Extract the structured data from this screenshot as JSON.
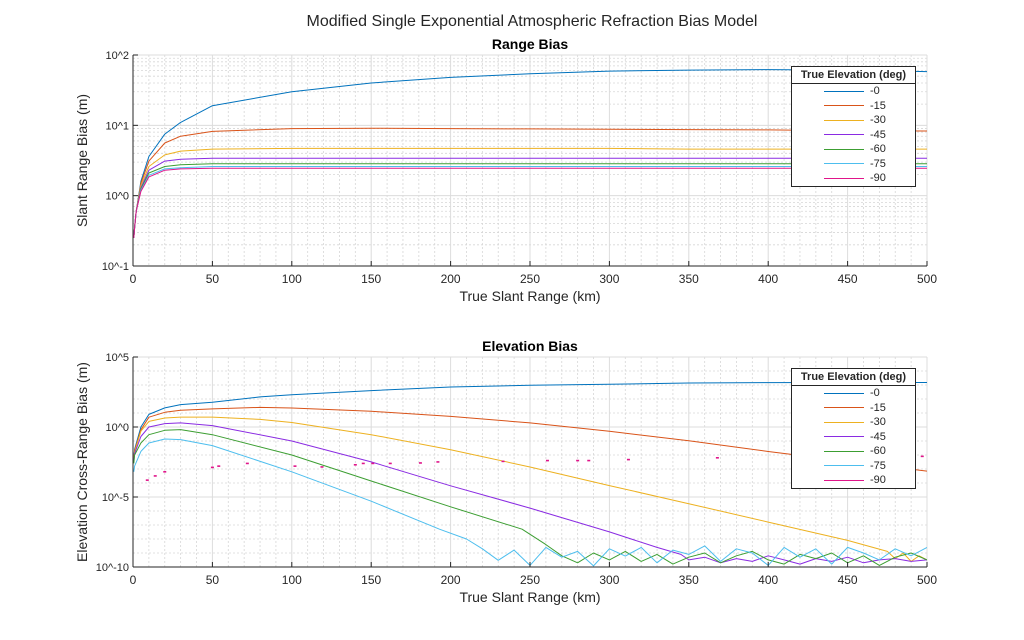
{
  "figure_title": "Modified Single Exponential Atmospheric Refraction Bias Model",
  "chart_data": [
    {
      "type": "line",
      "title": "Range Bias",
      "xlabel": "True Slant Range (km)",
      "ylabel": "Slant Range Bias (m)",
      "xlim": [
        0,
        500
      ],
      "ylim": [
        0.1,
        100
      ],
      "yscale": "log",
      "grid": true,
      "minor_grid": true,
      "xticks": [
        0,
        50,
        100,
        150,
        200,
        250,
        300,
        350,
        400,
        450,
        500
      ],
      "xtick_labels": [
        "0",
        "50",
        "100",
        "150",
        "200",
        "250",
        "300",
        "350",
        "400",
        "450",
        "500"
      ],
      "yticks": [
        0.1,
        1,
        10,
        100
      ],
      "ytick_labels": [
        "10^-1",
        "10^0",
        "10^1",
        "10^2"
      ],
      "legend_title": "True Elevation (deg)",
      "legend_position": "top-right",
      "x": [
        0.5,
        1,
        2,
        5,
        10,
        20,
        30,
        50,
        100,
        150,
        200,
        250,
        300,
        350,
        400,
        450,
        500
      ],
      "series": [
        {
          "name": "-0",
          "color": "#0072BD",
          "y": [
            0.25,
            0.35,
            0.6,
            1.6,
            3.6,
            7.5,
            11,
            19,
            30,
            40,
            48,
            54,
            59,
            61,
            62,
            61,
            58
          ]
        },
        {
          "name": "-15",
          "color": "#D95319",
          "y": [
            0.25,
            0.35,
            0.6,
            1.5,
            3.1,
            5.6,
            7,
            8.2,
            9,
            9.1,
            9,
            8.9,
            8.8,
            8.7,
            8.6,
            8.4,
            8.3
          ]
        },
        {
          "name": "-30",
          "color": "#EDB120",
          "y": [
            0.25,
            0.35,
            0.6,
            1.4,
            2.6,
            3.8,
            4.3,
            4.6,
            4.7,
            4.7,
            4.7,
            4.7,
            4.7,
            4.6,
            4.6,
            4.6,
            4.6
          ]
        },
        {
          "name": "-45",
          "color": "#8A2BE2",
          "y": [
            0.25,
            0.35,
            0.6,
            1.3,
            2.3,
            3.1,
            3.3,
            3.4,
            3.4,
            3.4,
            3.4,
            3.4,
            3.4,
            3.4,
            3.4,
            3.4,
            3.4
          ]
        },
        {
          "name": "-60",
          "color": "#3C9E32",
          "y": [
            0.25,
            0.35,
            0.6,
            1.25,
            2.1,
            2.6,
            2.75,
            2.85,
            2.85,
            2.85,
            2.85,
            2.85,
            2.85,
            2.85,
            2.85,
            2.85,
            2.85
          ]
        },
        {
          "name": "-75",
          "color": "#4DBEEE",
          "y": [
            0.25,
            0.35,
            0.6,
            1.2,
            1.95,
            2.4,
            2.5,
            2.6,
            2.6,
            2.6,
            2.6,
            2.6,
            2.6,
            2.6,
            2.6,
            2.6,
            2.6
          ]
        },
        {
          "name": "-90",
          "color": "#E0158A",
          "y": [
            0.25,
            0.35,
            0.6,
            1.15,
            1.85,
            2.3,
            2.4,
            2.45,
            2.45,
            2.45,
            2.45,
            2.45,
            2.45,
            2.45,
            2.45,
            2.45,
            2.45
          ]
        }
      ]
    },
    {
      "type": "line",
      "title": "Elevation Bias",
      "xlabel": "True Slant Range (km)",
      "ylabel": "Elevation Cross-Range Bias (m)",
      "xlim": [
        0,
        500
      ],
      "ylim": [
        1e-10,
        100000
      ],
      "yscale": "log",
      "grid": true,
      "minor_grid": true,
      "xticks": [
        0,
        50,
        100,
        150,
        200,
        250,
        300,
        350,
        400,
        450,
        500
      ],
      "xtick_labels": [
        "0",
        "50",
        "100",
        "150",
        "200",
        "250",
        "300",
        "350",
        "400",
        "450",
        "500"
      ],
      "yticks": [
        1e-10,
        1e-05,
        1,
        100000
      ],
      "ytick_labels": [
        "10^-10",
        "10^-5",
        "10^0",
        "10^5"
      ],
      "legend_title": "True Elevation (deg)",
      "legend_position": "top-right",
      "series": [
        {
          "name": "-0",
          "color": "#0072BD",
          "x": [
            0.5,
            1,
            5,
            10,
            20,
            30,
            50,
            80,
            100,
            150,
            200,
            250,
            300,
            350,
            400,
            450,
            500
          ],
          "y": [
            0.005,
            0.025,
            1,
            7.9,
            23,
            40,
            58,
            141,
            200,
            398,
            724,
            955,
            1122,
            1380,
            1479,
            1514,
            1514
          ]
        },
        {
          "name": "-15",
          "color": "#D95319",
          "x": [
            0.5,
            1,
            5,
            10,
            20,
            30,
            50,
            80,
            100,
            150,
            200,
            250,
            300,
            350,
            400,
            450,
            500
          ],
          "y": [
            0.005,
            0.02,
            0.63,
            5.0,
            11.2,
            15.8,
            19.5,
            25.1,
            22.9,
            13.2,
            5.75,
            1.95,
            0.49,
            0.105,
            0.0178,
            0.0035,
            0.00071
          ]
        },
        {
          "name": "-30",
          "color": "#EDB120",
          "x": [
            0.5,
            1,
            5,
            10,
            20,
            30,
            50,
            80,
            100,
            150,
            200,
            250,
            300,
            350,
            400,
            450,
            475,
            480,
            485,
            490,
            495,
            500
          ],
          "y": [
            0.004,
            0.016,
            0.5,
            2.5,
            4.4,
            5.1,
            5.1,
            3.5,
            2.1,
            0.28,
            0.024,
            0.0014,
            6.5e-05,
            3.3e-06,
            1.6e-07,
            7.9e-09,
            1.3e-09,
            4e-10,
            1e-09,
            2.5e-10,
            6.3e-10,
            3.2e-10
          ]
        },
        {
          "name": "-45",
          "color": "#8A2BE2",
          "x": [
            0.5,
            1,
            5,
            10,
            20,
            30,
            50,
            100,
            150,
            200,
            250,
            300,
            330,
            345,
            350,
            360,
            370,
            380,
            390,
            400,
            410,
            420,
            430,
            440,
            450,
            460,
            470,
            480,
            490,
            500
          ],
          "y": [
            0.0032,
            0.0126,
            0.21,
            1,
            1.74,
            1.95,
            1.26,
            0.1,
            0.0032,
            6.3e-05,
            1.6e-06,
            3.2e-08,
            2.5e-09,
            7.9e-10,
            3.2e-10,
            5e-10,
            2e-10,
            4e-10,
            2.5e-10,
            6.3e-10,
            3.2e-10,
            1.6e-10,
            4e-10,
            2.5e-10,
            5e-10,
            2e-10,
            3.2e-10,
            4e-10,
            2.5e-10,
            3.2e-10
          ]
        },
        {
          "name": "-60",
          "color": "#3C9E32",
          "x": [
            0.5,
            1,
            5,
            10,
            20,
            30,
            50,
            100,
            150,
            200,
            245,
            260,
            270,
            280,
            290,
            300,
            310,
            320,
            330,
            340,
            350,
            360,
            370,
            380,
            390,
            400,
            410,
            420,
            430,
            440,
            450,
            460,
            470,
            480,
            490,
            500
          ],
          "y": [
            0.0025,
            0.01,
            0.072,
            0.28,
            0.58,
            0.65,
            0.28,
            0.01,
            0.00014,
            2e-06,
            5e-08,
            4e-09,
            6.3e-10,
            2e-10,
            1e-09,
            3.2e-10,
            1.3e-09,
            2.5e-10,
            8e-10,
            1.6e-10,
            5e-10,
            1e-09,
            2e-10,
            6.3e-10,
            1.3e-09,
            3.2e-10,
            1.6e-10,
            8e-10,
            4e-10,
            1e-09,
            2e-10,
            6.3e-10,
            1.3e-10,
            5e-10,
            1e-09,
            3.2e-10
          ]
        },
        {
          "name": "-75",
          "color": "#4DBEEE",
          "x": [
            0.5,
            1,
            5,
            10,
            20,
            30,
            50,
            100,
            150,
            193,
            210,
            220,
            230,
            240,
            250,
            260,
            270,
            280,
            290,
            300,
            310,
            320,
            330,
            340,
            350,
            360,
            370,
            380,
            390,
            400,
            410,
            420,
            430,
            440,
            450,
            460,
            470,
            480,
            490,
            500
          ],
          "y": [
            0.00063,
            0.0016,
            0.018,
            0.072,
            0.14,
            0.126,
            0.047,
            0.00063,
            5e-06,
            5e-08,
            1e-08,
            2e-09,
            3e-10,
            1.6e-09,
            1.3e-10,
            2.5e-09,
            5e-10,
            1.3e-09,
            1.2e-10,
            2e-09,
            6e-10,
            2.5e-09,
            2e-10,
            1.6e-09,
            8e-10,
            3.2e-09,
            2.5e-10,
            2e-09,
            1e-09,
            1.3e-10,
            2.5e-09,
            5e-10,
            2e-09,
            1.6e-10,
            2.5e-09,
            1e-09,
            3.2e-10,
            2e-09,
            6.3e-10,
            2.5e-09
          ]
        },
        {
          "name": "-90",
          "color": "#E0158A",
          "style": "dots",
          "x": [
            9,
            14,
            20,
            50,
            54,
            72,
            102,
            119,
            140,
            145,
            151,
            162,
            181,
            192,
            233,
            261,
            280,
            287,
            312,
            368,
            497
          ],
          "y": [
            0.00016,
            0.00032,
            0.00063,
            0.0013,
            0.0016,
            0.0025,
            0.0016,
            0.0014,
            0.002,
            0.0025,
            0.0025,
            0.0025,
            0.0027,
            0.0032,
            0.0035,
            0.004,
            0.004,
            0.004,
            0.0047,
            0.0063,
            0.008
          ]
        }
      ]
    }
  ]
}
